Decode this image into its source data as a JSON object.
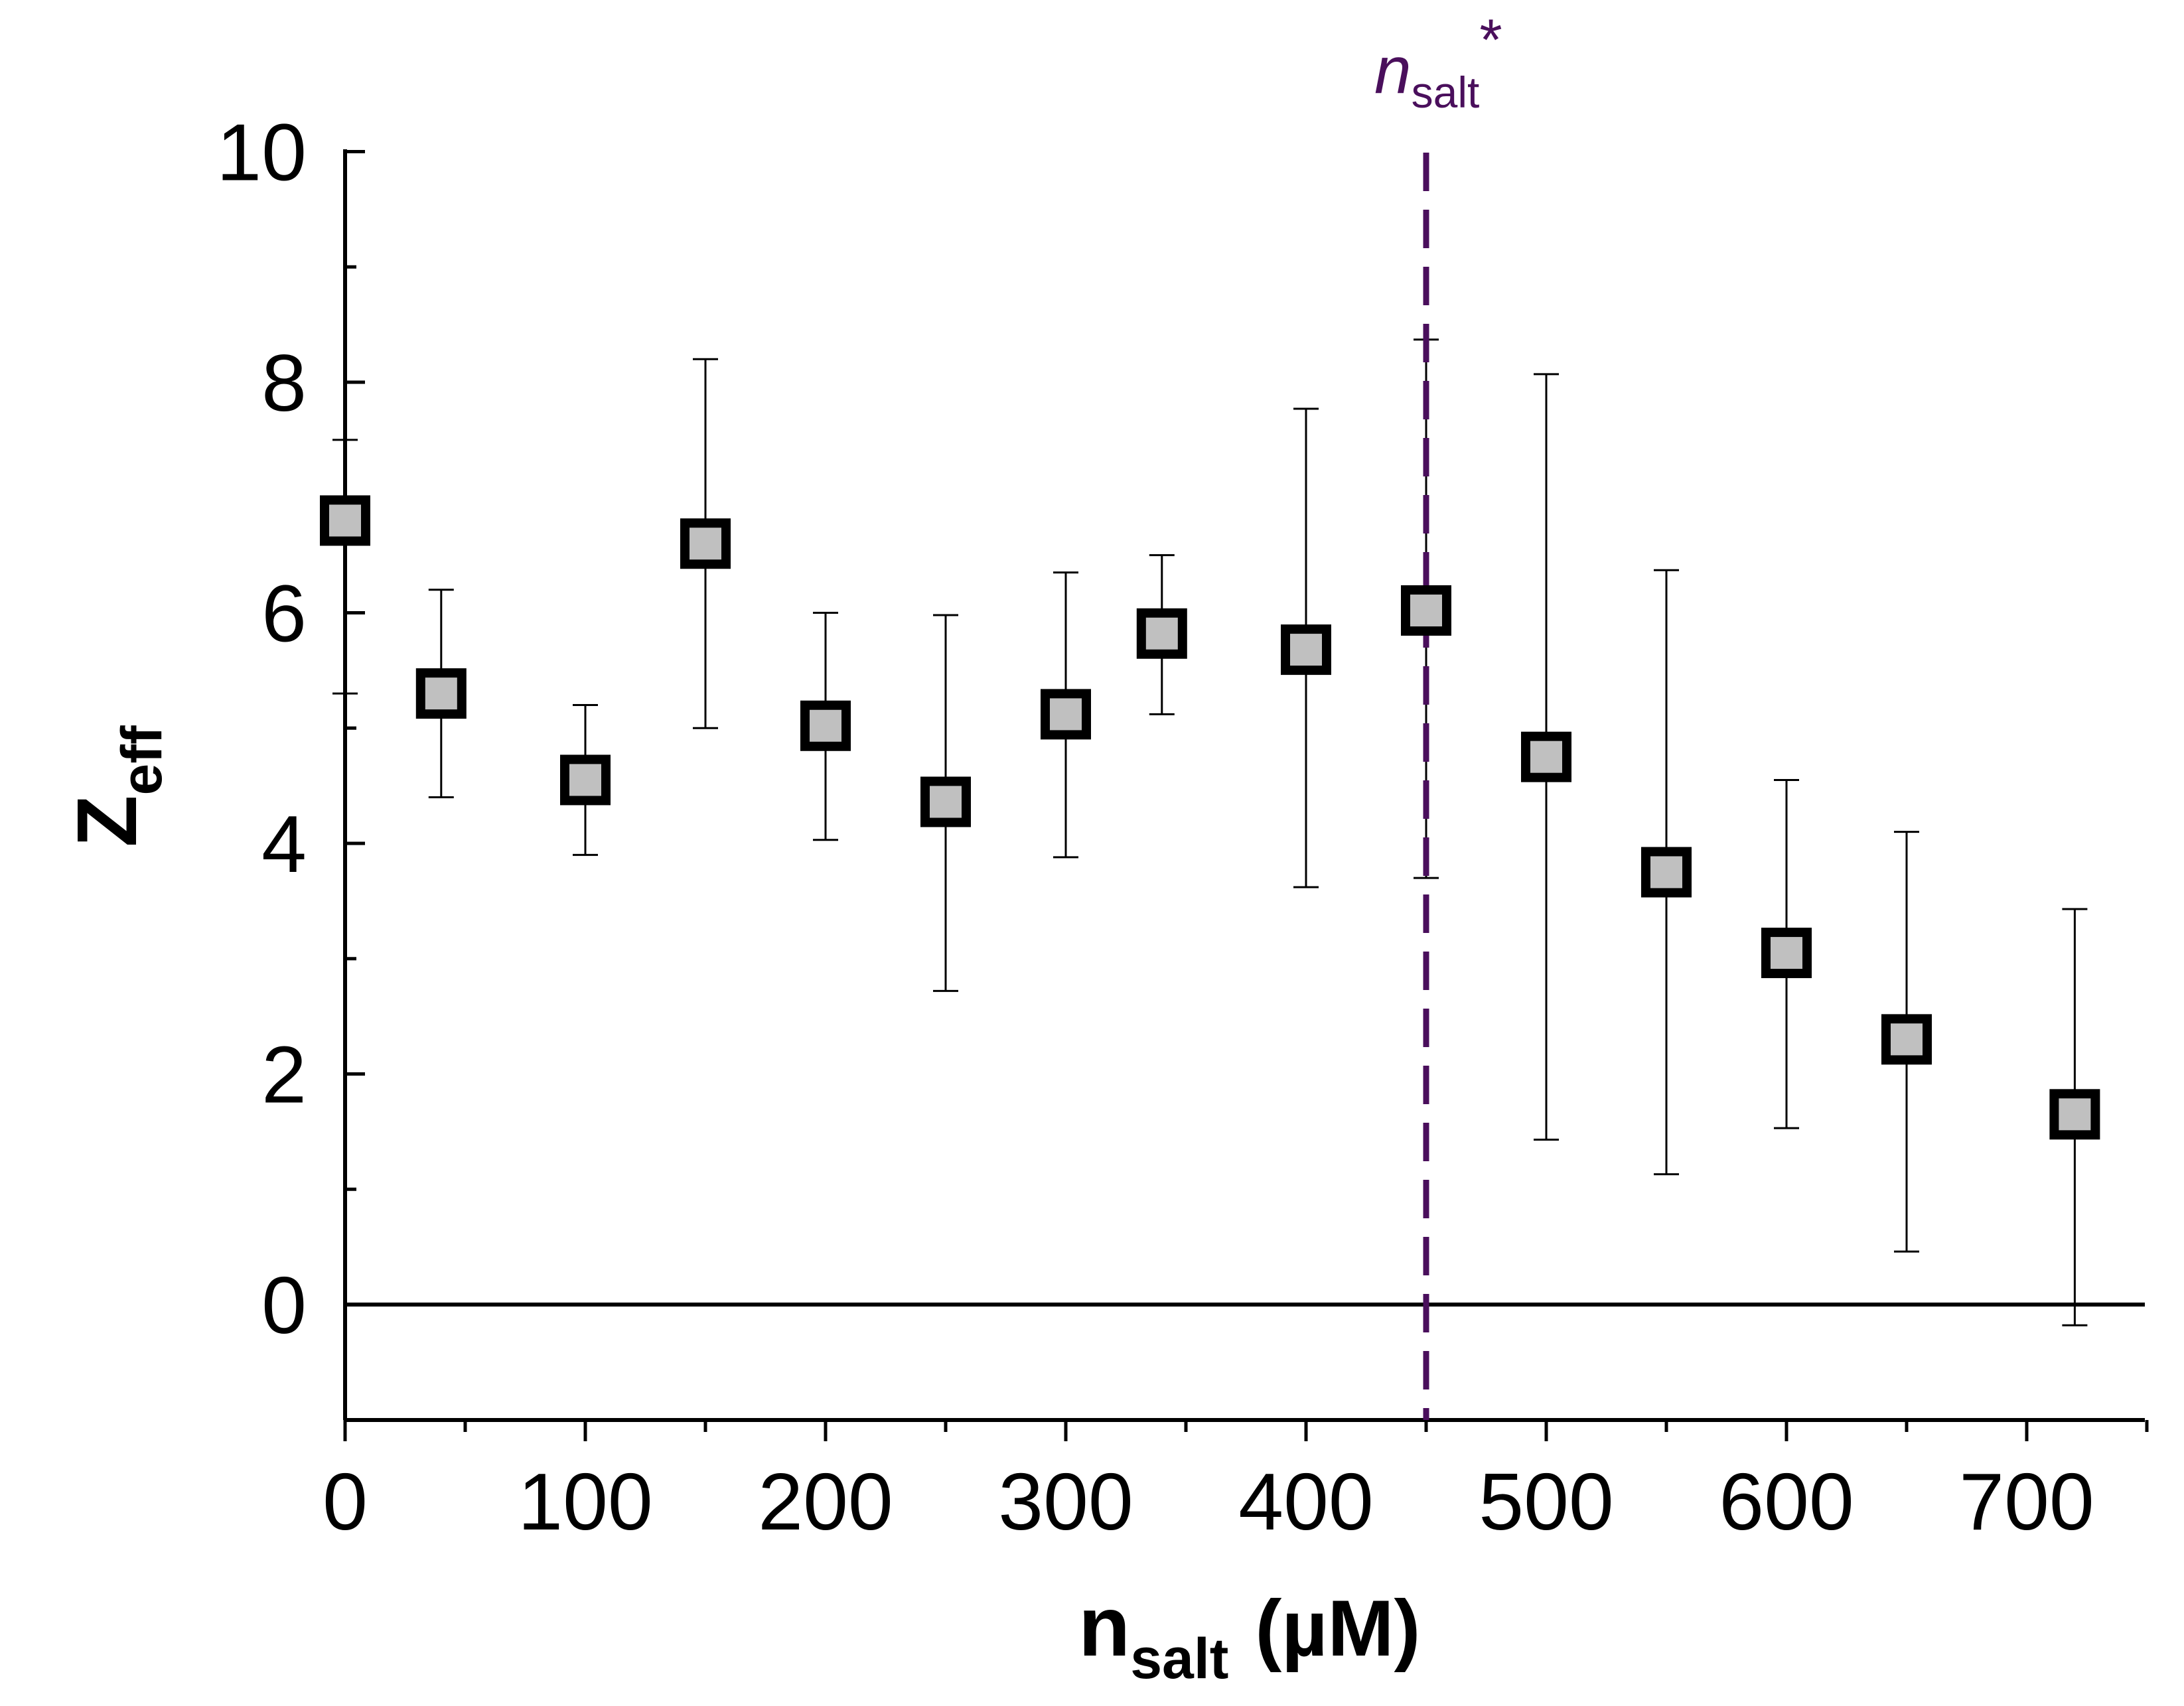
{
  "chart_data": {
    "type": "scatter",
    "title": "",
    "xlabel": {
      "main": "n",
      "sub": "salt",
      "unit": "(µM)"
    },
    "ylabel": {
      "main": "Z",
      "sub": "eff"
    },
    "xlim": [
      0,
      750
    ],
    "ylim": [
      -1,
      10
    ],
    "x_ticks": [
      0,
      100,
      200,
      300,
      400,
      500,
      600,
      700
    ],
    "y_ticks": [
      0,
      2,
      4,
      6,
      8,
      10
    ],
    "x_tick_labels": [
      "0",
      "100",
      "200",
      "300",
      "400",
      "500",
      "600",
      "700"
    ],
    "y_tick_labels": [
      "0",
      "2",
      "4",
      "6",
      "8",
      "10"
    ],
    "series": [
      {
        "name": "Z_eff",
        "marker": "square",
        "x": [
          0,
          40,
          100,
          150,
          200,
          250,
          300,
          340,
          400,
          450,
          500,
          550,
          600,
          650,
          720
        ],
        "y": [
          6.8,
          5.3,
          4.55,
          6.6,
          5.02,
          4.36,
          5.12,
          5.82,
          5.68,
          6.02,
          4.75,
          3.75,
          3.05,
          2.3,
          1.65
        ],
        "err_low": [
          5.3,
          4.4,
          3.9,
          5.0,
          4.03,
          2.72,
          3.88,
          5.12,
          3.62,
          3.7,
          1.43,
          1.13,
          1.53,
          0.46,
          -0.18
        ],
        "err_high": [
          7.5,
          6.2,
          5.2,
          8.2,
          6.0,
          5.98,
          6.35,
          6.5,
          7.77,
          8.37,
          8.07,
          6.37,
          4.55,
          4.1,
          3.43
        ]
      }
    ],
    "reference_lines": [
      {
        "orientation": "horizontal",
        "y": 0,
        "style": "solid"
      },
      {
        "orientation": "vertical",
        "x": 450,
        "style": "dashed",
        "color": "#4a0f5c",
        "label": {
          "main": "n",
          "sub": "salt",
          "sup": "*"
        }
      }
    ],
    "colors": {
      "marker_fill": "#c0c0c0",
      "marker_edge": "#000000",
      "critical_line": "#4a0f5c"
    }
  }
}
